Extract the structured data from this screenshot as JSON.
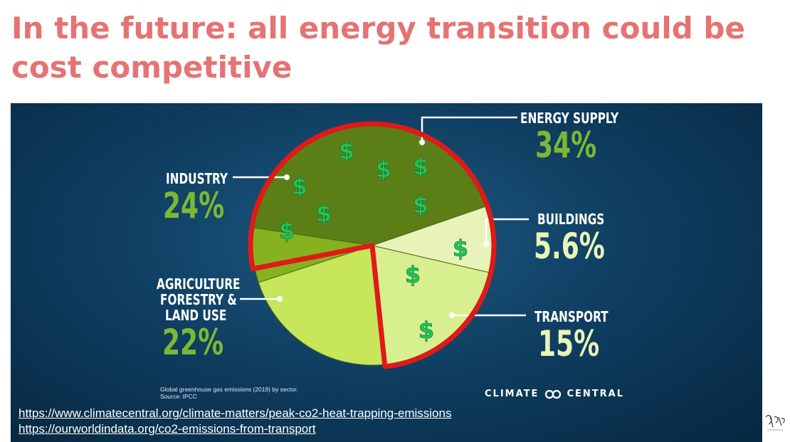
{
  "slide": {
    "title": "In the future: all energy transition could be cost competitive"
  },
  "chart_data": {
    "type": "pie",
    "title": "",
    "caption": "Global greenhouse gas emissions (2019) by sector.",
    "source": "Source: IPCC",
    "brand": "CLIMATE CENTRAL",
    "slices": [
      {
        "key": "energy",
        "name": "ENERGY SUPPLY",
        "value_label": "34%",
        "value": 34,
        "color": "#5b7f16",
        "dollar_count": 5
      },
      {
        "key": "buildings",
        "name": "BUILDINGS",
        "value_label": "5.6%",
        "value": 5.6,
        "color": "#e7f3b8",
        "dollar_count": 1
      },
      {
        "key": "transport",
        "name": "TRANSPORT",
        "value_label": "15%",
        "value": 15,
        "color": "#d8ef8f",
        "dollar_count": 2
      },
      {
        "key": "agriculture",
        "name": "AGRICULTURE FORESTRY & LAND USE",
        "value_label": "22%",
        "value": 22,
        "color": "#c7e65a",
        "dollar_count": 0
      },
      {
        "key": "industry",
        "name": "INDUSTRY",
        "value_label": "24%",
        "value": 24,
        "color": "#86b21f",
        "dollar_count": 4
      }
    ],
    "highlight": {
      "description_color": "#e01919",
      "covers": [
        "energy",
        "buildings",
        "transport",
        "industry"
      ]
    },
    "dollar_symbol": "$",
    "dollar_color": "#21c45a"
  },
  "labels": {
    "energy": {
      "line1": "ENERGY SUPPLY",
      "value": "34%"
    },
    "industry": {
      "line1": "INDUSTRY",
      "value": "24%"
    },
    "buildings": {
      "line1": "BUILDINGS",
      "value": "5.6%"
    },
    "agriculture": {
      "line1": "AGRICULTURE",
      "line2": "FORESTRY &",
      "line3": "LAND USE",
      "value": "22%"
    },
    "transport": {
      "line1": "TRANSPORT",
      "value": "15%"
    }
  },
  "links": [
    "https://www.climatecentral.org/climate-matters/peak-co2-heat-trapping-emissions",
    "https://ourworldindata.org/co2-emissions-from-transport"
  ]
}
